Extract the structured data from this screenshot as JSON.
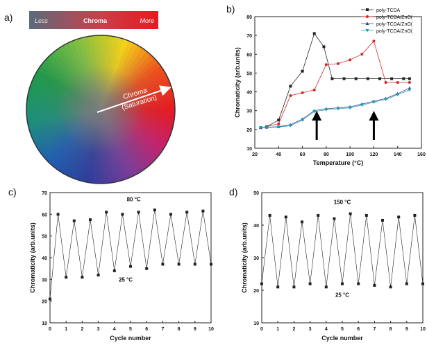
{
  "panels": {
    "a": "a)",
    "b": "b)",
    "c": "c)",
    "d": "d)"
  },
  "chroma_bar": {
    "less": "Less",
    "chroma": "Chroma",
    "more": "More",
    "colors": [
      "#5a6b7a",
      "#c8404a",
      "#e8191f"
    ]
  },
  "wheel": {
    "arrow_label_1": "Chroma",
    "arrow_label_2": "(Saturation)"
  },
  "chart_data": [
    {
      "panel": "b",
      "type": "line",
      "xlabel": "Temperature (°C)",
      "ylabel": "Chromaticity (arb.units)",
      "xlim": [
        20,
        160
      ],
      "ylim": [
        10,
        80
      ],
      "xticks": [
        20,
        40,
        60,
        80,
        100,
        120,
        140,
        160
      ],
      "yticks": [
        10,
        20,
        30,
        40,
        50,
        60,
        70,
        80
      ],
      "xtick_labels": [
        "20",
        "40",
        "60",
        "80",
        "100",
        "120",
        "140",
        "160"
      ],
      "ytick_labels": [
        "10",
        "20",
        "30",
        "40",
        "50",
        "60",
        "70",
        "80"
      ],
      "legend_position": "top-right",
      "series": [
        {
          "name": "poly-TCDA",
          "color": "#222222",
          "marker": "square",
          "x": [
            25,
            30,
            40,
            50,
            60,
            70,
            78,
            85,
            95,
            105,
            115,
            125,
            135,
            145,
            150
          ],
          "y": [
            21,
            21.5,
            25,
            43,
            51,
            71,
            64,
            47,
            47,
            47,
            47,
            47,
            47,
            47,
            47
          ]
        },
        {
          "name": "poly-TCDA/ZnO(",
          "color": "#d62728",
          "marker": "circle",
          "x": [
            25,
            30,
            40,
            50,
            60,
            70,
            80,
            90,
            100,
            110,
            120,
            130,
            140,
            150
          ],
          "y": [
            21,
            21.5,
            23,
            38,
            39.5,
            41,
            54.5,
            55,
            57,
            60,
            67,
            45,
            45,
            45
          ]
        },
        {
          "name": "poly-TCDA/ZnO(",
          "color": "#3b3bb0",
          "marker": "triangle-up",
          "x": [
            25,
            30,
            40,
            50,
            60,
            70,
            80,
            90,
            100,
            110,
            120,
            130,
            140,
            150
          ],
          "y": [
            21,
            21.2,
            21.5,
            22.5,
            25.5,
            30,
            31,
            31.5,
            32,
            33.5,
            35,
            36.5,
            39,
            42
          ]
        },
        {
          "name": "poly-TCDA/ZnO(",
          "color": "#1fa5a5",
          "marker": "triangle-down",
          "x": [
            25,
            30,
            40,
            50,
            60,
            70,
            80,
            90,
            100,
            110,
            120,
            130,
            140,
            150
          ],
          "y": [
            21,
            21,
            21.3,
            22,
            25,
            29.5,
            30.5,
            31,
            31.5,
            33,
            34.5,
            36,
            38.5,
            41
          ]
        }
      ],
      "arrows_at_x": [
        72,
        120
      ]
    },
    {
      "panel": "c",
      "type": "line",
      "xlabel": "Cycle number",
      "ylabel": "Chromaticity (arb.units)",
      "xlim": [
        0,
        10
      ],
      "ylim": [
        10,
        70
      ],
      "xticks": [
        0,
        1,
        2,
        3,
        4,
        5,
        6,
        7,
        8,
        9,
        10
      ],
      "yticks": [
        10,
        20,
        30,
        40,
        50,
        60,
        70
      ],
      "xtick_labels": [
        "0",
        "1",
        "2",
        "3",
        "4",
        "5",
        "6",
        "7",
        "8",
        "9",
        "10"
      ],
      "ytick_labels": [
        "10",
        "20",
        "30",
        "40",
        "50",
        "60",
        "70"
      ],
      "annotations": [
        {
          "text": "80 °C",
          "x": 5.2,
          "y": 66
        },
        {
          "text": "25 °C",
          "x": 4.7,
          "y": 29
        }
      ],
      "series": [
        {
          "color": "#222222",
          "marker": "square",
          "x": [
            0,
            0.5,
            1,
            1.5,
            2,
            2.5,
            3,
            3.5,
            4,
            4.5,
            5,
            5.5,
            6,
            6.5,
            7,
            7.5,
            8,
            8.5,
            9,
            9.5,
            10
          ],
          "y": [
            21,
            60,
            31,
            57,
            31,
            57.5,
            32,
            61,
            34,
            60,
            36,
            61,
            35,
            62,
            37,
            60,
            37,
            61,
            37,
            61.5,
            37
          ]
        }
      ]
    },
    {
      "panel": "d",
      "type": "line",
      "xlabel": "Cycle number",
      "ylabel": "Chromaticity (arb.units)",
      "xlim": [
        0,
        10
      ],
      "ylim": [
        10,
        50
      ],
      "xticks": [
        0,
        1,
        2,
        3,
        4,
        5,
        6,
        7,
        8,
        9,
        10
      ],
      "yticks": [
        10,
        20,
        30,
        40,
        50
      ],
      "xtick_labels": [
        "0",
        "1",
        "2",
        "3",
        "4",
        "5",
        "6",
        "7",
        "8",
        "9",
        "10"
      ],
      "ytick_labels": [
        "10",
        "20",
        "30",
        "40",
        "50"
      ],
      "annotations": [
        {
          "text": "150 °C",
          "x": 5.0,
          "y": 46.5
        },
        {
          "text": "25 °C",
          "x": 5.0,
          "y": 18
        }
      ],
      "series": [
        {
          "color": "#222222",
          "marker": "square",
          "x": [
            0,
            0.5,
            1,
            1.5,
            2,
            2.5,
            3,
            3.5,
            4,
            4.5,
            5,
            5.5,
            6,
            6.5,
            7,
            7.5,
            8,
            8.5,
            9,
            9.5,
            10
          ],
          "y": [
            22,
            43,
            21,
            42.5,
            21,
            41,
            22,
            43,
            21,
            42,
            22,
            43.5,
            22,
            43,
            21.5,
            41.5,
            21,
            42.5,
            22,
            43,
            22
          ]
        }
      ]
    }
  ]
}
